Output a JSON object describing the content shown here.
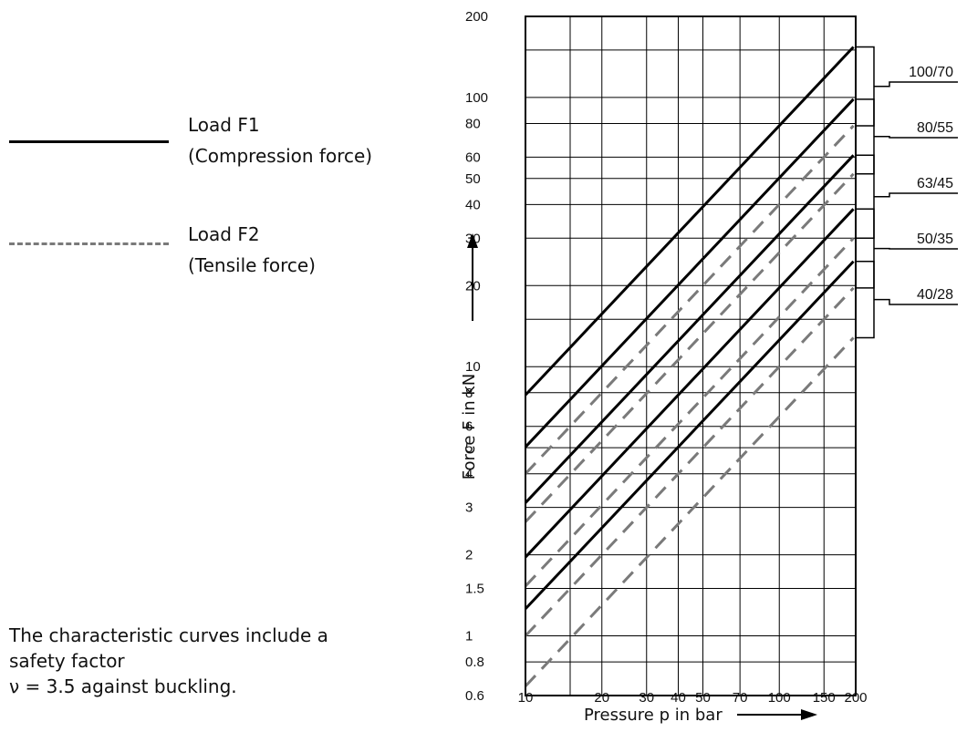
{
  "legend": {
    "load_f1_title": "Load F1",
    "load_f1_sub": "(Compression force)",
    "load_f2_title": "Load F2",
    "load_f2_sub": "(Tensile force)"
  },
  "note": {
    "line1": "The characteristic curves include a",
    "line2": "safety factor",
    "line3": "ν = 3.5 against buckling."
  },
  "colors": {
    "compression": "#000000",
    "tensile": "#7a7a7a",
    "grid": "#000000"
  },
  "chart_data": {
    "type": "line",
    "xscale": "log",
    "yscale": "log",
    "xlabel": "Pressure p in bar",
    "ylabel": "Force F in kN",
    "xlim": [
      10,
      200
    ],
    "ylim": [
      0.6,
      200
    ],
    "x_ticks": [
      "10",
      "20",
      "30",
      "40",
      "50",
      "70",
      "100",
      "150",
      "200"
    ],
    "x_tick_values": [
      10,
      20,
      30,
      40,
      50,
      70,
      100,
      150,
      200
    ],
    "y_ticks": [
      "200",
      "100",
      "80",
      "60",
      "50",
      "40",
      "30",
      "20",
      "10",
      "8",
      "6",
      "5",
      "4",
      "3",
      "2",
      "1.5",
      "1",
      "0.8",
      "0.6"
    ],
    "y_tick_values": [
      200,
      100,
      80,
      60,
      50,
      40,
      30,
      20,
      10,
      8,
      6,
      5,
      4,
      3,
      2,
      1.5,
      1,
      0.8,
      0.6
    ],
    "x_grid": [
      10,
      15,
      20,
      30,
      40,
      50,
      70,
      100,
      150,
      200
    ],
    "y_grid": [
      0.6,
      0.8,
      1,
      1.5,
      2,
      3,
      4,
      5,
      6,
      8,
      10,
      15,
      20,
      30,
      40,
      50,
      60,
      80,
      100,
      150,
      200
    ],
    "grid": true,
    "series": [
      {
        "size": "100/70",
        "load": "F1",
        "style": "solid",
        "x": [
          10,
          196
        ],
        "y": [
          7.85,
          154
        ]
      },
      {
        "size": "100/70",
        "load": "F2",
        "style": "dashed",
        "x": [
          10,
          196
        ],
        "y": [
          4.0,
          78.5
        ]
      },
      {
        "size": "80/55",
        "load": "F1",
        "style": "solid",
        "x": [
          10,
          196
        ],
        "y": [
          5.03,
          98.5
        ]
      },
      {
        "size": "80/55",
        "load": "F2",
        "style": "dashed",
        "x": [
          10,
          196
        ],
        "y": [
          2.65,
          52
        ]
      },
      {
        "size": "63/45",
        "load": "F1",
        "style": "solid",
        "x": [
          10,
          196
        ],
        "y": [
          3.12,
          61
        ]
      },
      {
        "size": "63/45",
        "load": "F2",
        "style": "dashed",
        "x": [
          10,
          196
        ],
        "y": [
          1.53,
          30
        ]
      },
      {
        "size": "50/35",
        "load": "F1",
        "style": "solid",
        "x": [
          10,
          196
        ],
        "y": [
          1.96,
          38.5
        ]
      },
      {
        "size": "50/35",
        "load": "F2",
        "style": "dashed",
        "x": [
          10,
          196
        ],
        "y": [
          1.0,
          19.6
        ]
      },
      {
        "size": "40/28",
        "load": "F1",
        "style": "solid",
        "x": [
          10,
          196
        ],
        "y": [
          1.26,
          24.6
        ]
      },
      {
        "size": "40/28",
        "load": "F2",
        "style": "dashed",
        "x": [
          10,
          196
        ],
        "y": [
          0.65,
          12.8
        ]
      }
    ],
    "size_labels": [
      "100/70",
      "80/55",
      "63/45",
      "50/35",
      "40/28"
    ]
  }
}
